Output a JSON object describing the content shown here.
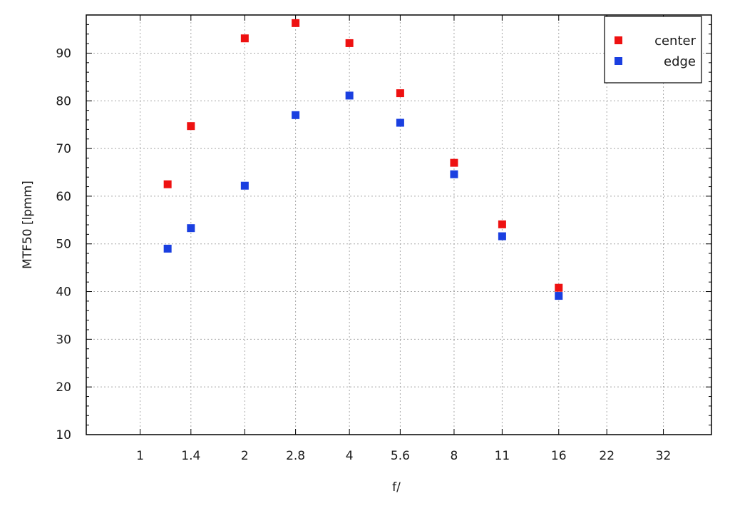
{
  "chart_data": {
    "type": "scatter",
    "title": "",
    "xlabel": "f/",
    "ylabel": "MTF50 [lpmm]",
    "x_scale": "log2",
    "xlim": [
      0.7,
      44
    ],
    "ylim": [
      10,
      98
    ],
    "x_ticks": [
      {
        "value": 1,
        "label": "1"
      },
      {
        "value": 1.4,
        "label": "1.4"
      },
      {
        "value": 2,
        "label": "2"
      },
      {
        "value": 2.8,
        "label": "2.8"
      },
      {
        "value": 4,
        "label": "4"
      },
      {
        "value": 5.6,
        "label": "5.6"
      },
      {
        "value": 8,
        "label": "8"
      },
      {
        "value": 11,
        "label": "11"
      },
      {
        "value": 16,
        "label": "16"
      },
      {
        "value": 22,
        "label": "22"
      },
      {
        "value": 32,
        "label": "32"
      }
    ],
    "y_ticks": [
      10,
      20,
      30,
      40,
      50,
      60,
      70,
      80,
      90
    ],
    "grid": true,
    "legend_position": "top-right",
    "series": [
      {
        "name": "center",
        "color": "#ee1111",
        "points": [
          {
            "x": 1.2,
            "y": 62.5
          },
          {
            "x": 1.4,
            "y": 74.7
          },
          {
            "x": 2,
            "y": 93.1
          },
          {
            "x": 2.8,
            "y": 96.3
          },
          {
            "x": 4,
            "y": 92.1
          },
          {
            "x": 5.6,
            "y": 81.6
          },
          {
            "x": 8,
            "y": 67.0
          },
          {
            "x": 11,
            "y": 54.1
          },
          {
            "x": 16,
            "y": 40.8
          }
        ]
      },
      {
        "name": "edge",
        "color": "#1a3fe0",
        "points": [
          {
            "x": 1.2,
            "y": 49.0
          },
          {
            "x": 1.4,
            "y": 53.3
          },
          {
            "x": 2,
            "y": 62.2
          },
          {
            "x": 2.8,
            "y": 77.0
          },
          {
            "x": 4,
            "y": 81.1
          },
          {
            "x": 5.6,
            "y": 75.4
          },
          {
            "x": 8,
            "y": 64.6
          },
          {
            "x": 11,
            "y": 51.6
          },
          {
            "x": 16,
            "y": 39.1
          }
        ]
      }
    ]
  }
}
